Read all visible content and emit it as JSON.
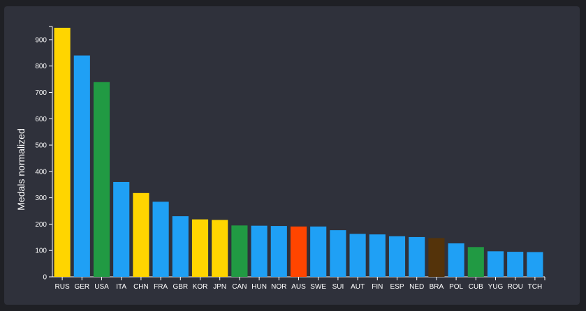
{
  "chart_data": {
    "type": "bar",
    "ylabel": "Medals normalized",
    "xlabel": "",
    "title": "",
    "ylim": [
      0,
      950
    ],
    "yticks": [
      0,
      100,
      200,
      300,
      400,
      500,
      600,
      700,
      800,
      900
    ],
    "grid": false,
    "categories": [
      "RUS",
      "GER",
      "USA",
      "ITA",
      "CHN",
      "FRA",
      "GBR",
      "KOR",
      "JPN",
      "CAN",
      "HUN",
      "NOR",
      "AUS",
      "SWE",
      "SUI",
      "AUT",
      "FIN",
      "ESP",
      "NED",
      "BRA",
      "POL",
      "CUB",
      "YUG",
      "ROU",
      "TCH"
    ],
    "values": [
      945,
      840,
      739,
      360,
      318,
      285,
      230,
      218,
      216,
      195,
      194,
      193,
      191,
      191,
      177,
      163,
      161,
      154,
      151,
      147,
      127,
      113,
      97,
      95,
      94
    ],
    "colors": [
      "#ffd500",
      "#1fa0f5",
      "#219a43",
      "#1fa0f5",
      "#ffd500",
      "#1fa0f5",
      "#1fa0f5",
      "#ffd500",
      "#ffd500",
      "#219a43",
      "#1fa0f5",
      "#1fa0f5",
      "#ff4500",
      "#1fa0f5",
      "#1fa0f5",
      "#1fa0f5",
      "#1fa0f5",
      "#1fa0f5",
      "#1fa0f5",
      "#54330a",
      "#1fa0f5",
      "#219a43",
      "#1fa0f5",
      "#1fa0f5",
      "#1fa0f5"
    ]
  }
}
